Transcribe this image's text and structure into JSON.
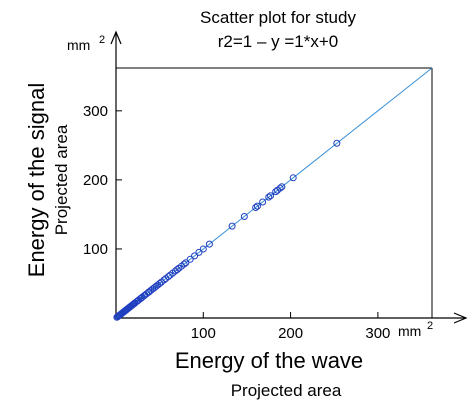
{
  "chart_data": {
    "type": "scatter",
    "title": "Scatter plot for study",
    "subtitle": "r2=1 – y =1*x+0",
    "xlabel": "Energy of the wave",
    "xlabel_sub": "Projected area",
    "ylabel": "Energy of the signal",
    "ylabel_sub": "Projected area",
    "x_unit": "mm",
    "x_unit_exp": "2",
    "y_unit": "mm",
    "y_unit_exp": "2",
    "xlim": [
      0,
      362
    ],
    "ylim": [
      0,
      362
    ],
    "x_ticks": [
      100,
      200,
      300
    ],
    "y_ticks": [
      100,
      200,
      300
    ],
    "x_tick_labels": [
      "100",
      "200",
      "300"
    ],
    "y_tick_labels": [
      "100",
      "200",
      "300"
    ],
    "grid": false,
    "fit_line": {
      "slope": 1,
      "intercept": 0
    },
    "marker_color": "#1f3fbf",
    "line_color": "#3a8fd6",
    "series": [
      {
        "x": [
          1,
          2,
          3,
          4,
          5,
          6,
          7,
          8,
          9,
          10,
          11,
          12,
          13,
          14,
          15,
          16,
          17,
          18,
          19,
          20,
          21,
          22,
          24,
          25,
          26,
          28,
          29,
          30,
          32,
          33,
          35,
          37,
          38,
          40,
          42,
          44,
          46,
          48,
          50,
          52,
          55,
          57,
          60,
          62,
          65,
          68,
          70,
          72,
          75,
          78,
          80,
          85,
          90,
          95,
          100,
          107,
          133,
          147,
          160,
          162,
          168,
          175,
          177,
          183,
          185,
          188,
          190,
          203,
          253
        ],
        "y": [
          1,
          2,
          3,
          4,
          5,
          6,
          7,
          8,
          9,
          10,
          11,
          12,
          13,
          14,
          15,
          16,
          17,
          18,
          19,
          20,
          21,
          22,
          24,
          25,
          26,
          28,
          29,
          30,
          32,
          33,
          35,
          37,
          38,
          40,
          42,
          44,
          46,
          48,
          50,
          52,
          55,
          57,
          60,
          62,
          65,
          68,
          70,
          72,
          75,
          78,
          80,
          85,
          90,
          95,
          100,
          107,
          133,
          147,
          160,
          162,
          168,
          175,
          177,
          183,
          185,
          188,
          190,
          203,
          253
        ]
      }
    ]
  }
}
